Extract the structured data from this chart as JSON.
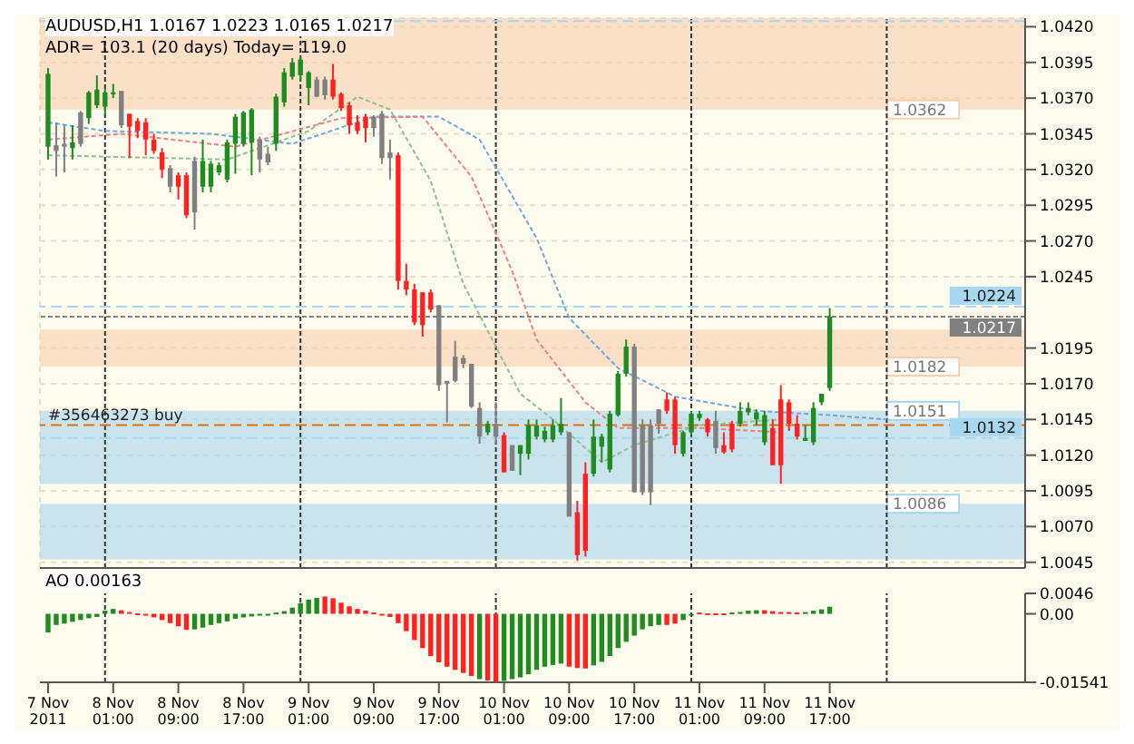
{
  "chart_data": [
    {
      "type": "candlestick",
      "title": "AUDUSD,H1 1.0167 1.0223 1.0165 1.0217",
      "subtitle": "ADR= 103.1 (20 days) Today= 119.0",
      "x": [
        "2011-11-07T17:00",
        "2011-11-07T18:00",
        "2011-11-07T19:00",
        "2011-11-07T20:00",
        "2011-11-07T21:00",
        "2011-11-07T22:00",
        "2011-11-07T23:00",
        "2011-11-08T00:00",
        "2011-11-08T01:00",
        "2011-11-08T02:00",
        "2011-11-08T03:00",
        "2011-11-08T04:00",
        "2011-11-08T05:00",
        "2011-11-08T06:00",
        "2011-11-08T07:00",
        "2011-11-08T08:00",
        "2011-11-08T09:00",
        "2011-11-08T10:00",
        "2011-11-08T11:00",
        "2011-11-08T12:00",
        "2011-11-08T13:00",
        "2011-11-08T14:00",
        "2011-11-08T15:00",
        "2011-11-08T16:00",
        "2011-11-08T17:00",
        "2011-11-08T18:00",
        "2011-11-08T19:00",
        "2011-11-08T20:00",
        "2011-11-08T21:00",
        "2011-11-08T22:00",
        "2011-11-08T23:00",
        "2011-11-09T00:00",
        "2011-11-09T01:00",
        "2011-11-09T02:00",
        "2011-11-09T03:00",
        "2011-11-09T04:00",
        "2011-11-09T05:00",
        "2011-11-09T06:00",
        "2011-11-09T07:00",
        "2011-11-09T08:00",
        "2011-11-09T09:00",
        "2011-11-09T10:00",
        "2011-11-09T11:00",
        "2011-11-09T12:00",
        "2011-11-09T13:00",
        "2011-11-09T14:00",
        "2011-11-09T15:00",
        "2011-11-09T16:00",
        "2011-11-09T17:00",
        "2011-11-09T18:00",
        "2011-11-09T19:00",
        "2011-11-09T20:00",
        "2011-11-09T21:00",
        "2011-11-09T22:00",
        "2011-11-09T23:00",
        "2011-11-10T00:00",
        "2011-11-10T01:00",
        "2011-11-10T02:00",
        "2011-11-10T03:00",
        "2011-11-10T04:00",
        "2011-11-10T05:00",
        "2011-11-10T06:00",
        "2011-11-10T07:00",
        "2011-11-10T08:00",
        "2011-11-10T09:00",
        "2011-11-10T10:00",
        "2011-11-10T11:00",
        "2011-11-10T12:00",
        "2011-11-10T13:00",
        "2011-11-10T14:00",
        "2011-11-10T15:00",
        "2011-11-10T16:00",
        "2011-11-10T17:00",
        "2011-11-10T18:00",
        "2011-11-10T19:00",
        "2011-11-10T20:00",
        "2011-11-10T21:00",
        "2011-11-10T22:00",
        "2011-11-10T23:00",
        "2011-11-11T00:00",
        "2011-11-11T01:00",
        "2011-11-11T02:00",
        "2011-11-11T03:00",
        "2011-11-11T04:00",
        "2011-11-11T05:00",
        "2011-11-11T06:00",
        "2011-11-11T07:00",
        "2011-11-11T08:00",
        "2011-11-11T09:00",
        "2011-11-11T10:00",
        "2011-11-11T11:00",
        "2011-11-11T12:00",
        "2011-11-11T13:00",
        "2011-11-11T14:00",
        "2011-11-11T15:00",
        "2011-11-11T16:00",
        "2011-11-11T17:00"
      ],
      "ohlc": [
        [
          1.0336,
          1.0391,
          1.0327,
          1.0387
        ],
        [
          1.0337,
          1.0353,
          1.0315,
          1.0333
        ],
        [
          1.0336,
          1.0351,
          1.0318,
          1.0338
        ],
        [
          1.0335,
          1.0351,
          1.0327,
          1.0339
        ],
        [
          1.0338,
          1.0361,
          1.0336,
          1.036
        ],
        [
          1.0356,
          1.0375,
          1.0352,
          1.0374
        ],
        [
          1.0365,
          1.0386,
          1.0363,
          1.0376
        ],
        [
          1.0364,
          1.0377,
          1.0358,
          1.0374
        ],
        [
          1.0373,
          1.038,
          1.037,
          1.0374
        ],
        [
          1.0375,
          1.0375,
          1.0349,
          1.0351
        ],
        [
          1.0359,
          1.0359,
          1.0328,
          1.035
        ],
        [
          1.0354,
          1.0356,
          1.0342,
          1.0347
        ],
        [
          1.0353,
          1.0356,
          1.033,
          1.0341
        ],
        [
          1.0341,
          1.0345,
          1.0331,
          1.0333
        ],
        [
          1.0332,
          1.0335,
          1.0314,
          1.032
        ],
        [
          1.0321,
          1.0323,
          1.0304,
          1.0308
        ],
        [
          1.0316,
          1.0318,
          1.0299,
          1.0308
        ],
        [
          1.0316,
          1.0318,
          1.0286,
          1.0288
        ],
        [
          1.029,
          1.0329,
          1.0278,
          1.0326
        ],
        [
          1.0308,
          1.0341,
          1.0304,
          1.0326
        ],
        [
          1.0308,
          1.0326,
          1.0304,
          1.0324
        ],
        [
          1.0318,
          1.0325,
          1.0316,
          1.0323
        ],
        [
          1.0313,
          1.0341,
          1.0311,
          1.0339
        ],
        [
          1.0338,
          1.0359,
          1.0317,
          1.0357
        ],
        [
          1.0338,
          1.0361,
          1.0336,
          1.036
        ],
        [
          1.0339,
          1.0363,
          1.0316,
          1.0362
        ],
        [
          1.0341,
          1.0343,
          1.0318,
          1.0327
        ],
        [
          1.0331,
          1.0336,
          1.0323,
          1.0325
        ],
        [
          1.0338,
          1.0373,
          1.0333,
          1.0371
        ],
        [
          1.0367,
          1.0391,
          1.0364,
          1.0388
        ],
        [
          1.0385,
          1.0398,
          1.0383,
          1.0395
        ],
        [
          1.0386,
          1.0399,
          1.0382,
          1.0397
        ],
        [
          1.0377,
          1.0389,
          1.0365,
          1.0388
        ],
        [
          1.0383,
          1.0385,
          1.0371,
          1.0371
        ],
        [
          1.0383,
          1.0385,
          1.0369,
          1.0372
        ],
        [
          1.0383,
          1.0394,
          1.0369,
          1.0371
        ],
        [
          1.0373,
          1.0374,
          1.0361,
          1.0363
        ],
        [
          1.0365,
          1.0367,
          1.0345,
          1.0351
        ],
        [
          1.0353,
          1.0358,
          1.0345,
          1.0347
        ],
        [
          1.0357,
          1.0359,
          1.0339,
          1.0349
        ],
        [
          1.0357,
          1.0358,
          1.0343,
          1.0349
        ],
        [
          1.0359,
          1.0361,
          1.0324,
          1.0328
        ],
        [
          1.0332,
          1.0341,
          1.0313,
          1.0328
        ],
        [
          1.033,
          1.0332,
          1.0236,
          1.0242
        ],
        [
          1.0242,
          1.0254,
          1.0232,
          1.0236
        ],
        [
          1.0236,
          1.024,
          1.0211,
          1.0213
        ],
        [
          1.0234,
          1.0234,
          1.0203,
          1.0211
        ],
        [
          1.0234,
          1.0236,
          1.022,
          1.0222
        ],
        [
          1.0225,
          1.0225,
          1.0165,
          1.0169
        ],
        [
          1.0172,
          1.0172,
          1.0143,
          1.017
        ],
        [
          1.0172,
          1.02,
          1.0171,
          1.0189
        ],
        [
          1.0188,
          1.019,
          1.0181,
          1.0184
        ],
        [
          1.0184,
          1.0184,
          1.0153,
          1.0154
        ],
        [
          1.0153,
          1.0157,
          1.0128,
          1.0133
        ],
        [
          1.0136,
          1.0144,
          1.0134,
          1.0142
        ],
        [
          1.0142,
          1.0157,
          1.0128,
          1.0133
        ],
        [
          1.0134,
          1.0136,
          1.0108,
          1.0108
        ],
        [
          1.0127,
          1.0127,
          1.0109,
          1.0109
        ],
        [
          1.0121,
          1.0127,
          1.0106,
          1.0127
        ],
        [
          1.0121,
          1.0145,
          1.0117,
          1.0141
        ],
        [
          1.0133,
          1.0145,
          1.0131,
          1.0141
        ],
        [
          1.0131,
          1.014,
          1.0129,
          1.0137
        ],
        [
          1.0131,
          1.0145,
          1.0129,
          1.0141
        ],
        [
          1.0136,
          1.016,
          1.0134,
          1.0142
        ],
        [
          1.0136,
          1.0136,
          1.0077,
          1.0077
        ],
        [
          1.008,
          1.0088,
          1.0046,
          1.005
        ],
        [
          1.0107,
          1.0115,
          1.0049,
          1.0053
        ],
        [
          1.0107,
          1.0145,
          1.0105,
          1.0133
        ],
        [
          1.0126,
          1.0135,
          1.0115,
          1.0133
        ],
        [
          1.011,
          1.0151,
          1.0108,
          1.0149
        ],
        [
          1.0148,
          1.0179,
          1.0147,
          1.0177
        ],
        [
          1.0177,
          1.0201,
          1.0175,
          1.0196
        ],
        [
          1.0196,
          1.0198,
          1.0094,
          1.0094
        ],
        [
          1.0094,
          1.0145,
          1.0092,
          1.0141
        ],
        [
          1.0141,
          1.0145,
          1.0085,
          1.0094
        ],
        [
          1.0142,
          1.0152,
          1.0135,
          1.0152
        ],
        [
          1.0159,
          1.0164,
          1.0149,
          1.0151
        ],
        [
          1.0159,
          1.0161,
          1.0121,
          1.0127
        ],
        [
          1.0121,
          1.0137,
          1.0119,
          1.0136
        ],
        [
          1.0136,
          1.0151,
          1.0134,
          1.0149
        ],
        [
          1.0146,
          1.0151,
          1.0144,
          1.0149
        ],
        [
          1.0145,
          1.0146,
          1.0133,
          1.0136
        ],
        [
          1.0144,
          1.0151,
          1.0121,
          1.0125
        ],
        [
          1.0127,
          1.0136,
          1.0121,
          1.0122
        ],
        [
          1.0142,
          1.0144,
          1.0122,
          1.0124
        ],
        [
          1.0142,
          1.0157,
          1.014,
          1.0151
        ],
        [
          1.015,
          1.0157,
          1.0148,
          1.0153
        ],
        [
          1.0145,
          1.0152,
          1.0141,
          1.015
        ],
        [
          1.0129,
          1.0151,
          1.0127,
          1.0148
        ],
        [
          1.0139,
          1.0145,
          1.0113,
          1.0113
        ],
        [
          1.0159,
          1.0169,
          1.01,
          1.0113
        ],
        [
          1.0157,
          1.0159,
          1.0137,
          1.0142
        ],
        [
          1.0142,
          1.0148,
          1.0131,
          1.0133
        ],
        [
          1.013,
          1.0141,
          1.013,
          1.0132
        ],
        [
          1.0129,
          1.0157,
          1.0127,
          1.0153
        ],
        [
          1.0157,
          1.0163,
          1.0155,
          1.0163
        ],
        [
          1.0167,
          1.0223,
          1.0165,
          1.0217
        ]
      ],
      "colors": [
        "#1e8c1e",
        "#808080",
        "#808080",
        "#1e8c1e",
        "#808080",
        "#1e8c1e",
        "#1e8c1e",
        "#1e8c1e",
        "#1e8c1e",
        "#808080",
        "#ff2020",
        "#ff2020",
        "#ff2020",
        "#ff2020",
        "#ff2020",
        "#808080",
        "#ff2020",
        "#ff2020",
        "#808080",
        "#1e8c1e",
        "#1e8c1e",
        "#1e8c1e",
        "#1e8c1e",
        "#1e8c1e",
        "#1e8c1e",
        "#1e8c1e",
        "#808080",
        "#808080",
        "#1e8c1e",
        "#1e8c1e",
        "#1e8c1e",
        "#1e8c1e",
        "#1e8c1e",
        "#808080",
        "#808080",
        "#ff2020",
        "#ff2020",
        "#ff2020",
        "#ff2020",
        "#ff2020",
        "#808080",
        "#808080",
        "#808080",
        "#ff2020",
        "#ff2020",
        "#ff2020",
        "#ff2020",
        "#ff2020",
        "#808080",
        "#808080",
        "#808080",
        "#808080",
        "#808080",
        "#808080",
        "#1e8c1e",
        "#808080",
        "#ff2020",
        "#808080",
        "#1e8c1e",
        "#1e8c1e",
        "#1e8c1e",
        "#1e8c1e",
        "#1e8c1e",
        "#1e8c1e",
        "#808080",
        "#ff2020",
        "#ff2020",
        "#1e8c1e",
        "#1e8c1e",
        "#1e8c1e",
        "#1e8c1e",
        "#1e8c1e",
        "#808080",
        "#808080",
        "#808080",
        "#808080",
        "#ff2020",
        "#ff2020",
        "#1e8c1e",
        "#1e8c1e",
        "#1e8c1e",
        "#ff2020",
        "#808080",
        "#ff2020",
        "#ff2020",
        "#1e8c1e",
        "#1e8c1e",
        "#1e8c1e",
        "#1e8c1e",
        "#ff2020",
        "#ff2020",
        "#ff2020",
        "#ff2020",
        "#1e8c1e",
        "#1e8c1e",
        "#1e8c1e",
        "#1e8c1e"
      ],
      "series": [
        {
          "type": "line",
          "color": "#6fa8dc",
          "x": [
            "2011-11-07T17:00",
            "2011-11-08T00:00",
            "2011-11-08T13:00",
            "2011-11-08T23:00",
            "2011-11-09T09:00",
            "2011-11-09T17:00",
            "2011-11-09T22:00",
            "2011-11-10T05:00",
            "2011-11-10T09:00",
            "2011-11-10T15:00",
            "2011-11-10T22:00",
            "2011-11-11T08:00",
            "2011-11-11T17:00",
            "2011-11-12T00:00"
          ],
          "values": [
            1.0353,
            1.0347,
            1.0345,
            1.0338,
            1.0357,
            1.0357,
            1.0341,
            1.0272,
            1.0216,
            1.0181,
            1.0161,
            1.0151,
            1.0148,
            1.0145
          ]
        },
        {
          "type": "line",
          "color": "#f08080",
          "x": [
            "2011-11-07T17:00",
            "2011-11-08T02:00",
            "2011-11-08T16:00",
            "2011-11-09T05:00",
            "2011-11-09T15:00",
            "2011-11-09T21:00",
            "2011-11-10T02:00",
            "2011-11-10T05:00",
            "2011-11-10T11:00",
            "2011-11-10T15:00",
            "2011-11-11T01:00",
            "2011-11-11T11:00"
          ],
          "values": [
            1.0341,
            1.0345,
            1.0336,
            1.0356,
            1.0357,
            1.0315,
            1.0249,
            1.0201,
            1.0157,
            1.0139,
            1.0139,
            1.0136
          ]
        },
        {
          "type": "line",
          "color": "#90c090",
          "x": [
            "2011-11-07T17:00",
            "2011-11-08T15:00",
            "2011-11-09T01:00",
            "2011-11-09T07:00",
            "2011-11-09T11:00",
            "2011-11-09T16:00",
            "2011-11-09T20:00",
            "2011-11-10T03:00",
            "2011-11-10T07:00",
            "2011-11-10T13:00",
            "2011-11-10T17:00",
            "2011-11-11T01:00",
            "2011-11-11T11:00"
          ],
          "values": [
            1.033,
            1.0327,
            1.0347,
            1.0371,
            1.0362,
            1.0312,
            1.024,
            1.0163,
            1.0145,
            1.0115,
            1.0127,
            1.0141,
            1.0145
          ]
        }
      ],
      "line_style": "dotted",
      "xlim": [
        "2011-11-07T16:00",
        "2011-11-12T17:00"
      ],
      "xticks": [
        "2011-11-07T17:00",
        "2011-11-08T01:00",
        "2011-11-08T09:00",
        "2011-11-08T17:00",
        "2011-11-09T01:00",
        "2011-11-09T09:00",
        "2011-11-09T17:00",
        "2011-11-10T01:00",
        "2011-11-10T09:00",
        "2011-11-10T17:00",
        "2011-11-11T01:00",
        "2011-11-11T09:00",
        "2011-11-11T17:00"
      ],
      "ylim": [
        1.0041,
        1.0426
      ],
      "yticks": [
        1.0045,
        {
          "value": 1.007,
          "label": "1.0070"
        },
        1.0095,
        {
          "value": 1.012,
          "label": "1.0120"
        },
        1.0145,
        {
          "value": 1.017,
          "label": "1.0170"
        },
        1.0195,
        1.0245,
        {
          "value": 1.027,
          "label": "1.0270"
        },
        1.0295,
        {
          "value": 1.032,
          "label": "1.0320"
        },
        1.0345,
        {
          "value": 1.037,
          "label": "1.0370"
        },
        1.0395,
        {
          "value": 1.042,
          "label": "1.0420"
        }
      ],
      "tick_labels": "y",
      "grid": true,
      "bands": [
        {
          "axis": "y",
          "from": 1.0362,
          "to": 1.0426,
          "label": "1.0362",
          "color": "#f9cfae"
        },
        {
          "axis": "y",
          "from": 1.0182,
          "to": 1.0208,
          "label": "1.0182",
          "color": "#f9cfae"
        },
        {
          "axis": "y",
          "from": 1.0151,
          "to": 1.01,
          "label": "1.0151",
          "color": "#a9d6ee"
        },
        {
          "axis": "y",
          "from": 1.0086,
          "to": 1.0047,
          "label": "1.0086",
          "color": "#a9d6ee"
        }
      ],
      "ref_lines": [
        {
          "axis": "x",
          "value": "2011-11-08T00:00",
          "color": "#333333",
          "line_style": "dotted"
        },
        {
          "axis": "x",
          "value": "2011-11-09T00:00",
          "color": "#333333",
          "line_style": "dotted"
        },
        {
          "axis": "x",
          "value": "2011-11-10T00:00",
          "color": "#333333",
          "line_style": "dotted"
        },
        {
          "axis": "x",
          "value": "2011-11-11T00:00",
          "color": "#333333",
          "line_style": "dotted"
        },
        {
          "axis": "x",
          "value": "2011-11-12T00:00",
          "color": "#333333",
          "line_style": "dotted"
        },
        {
          "axis": "y",
          "value": 1.0424,
          "color": "#a8d8f0",
          "line_style": "dashed"
        },
        {
          "axis": "y",
          "value": 1.0224,
          "label": "1.0224",
          "color": "#a8d8f0",
          "line_style": "dashed"
        },
        {
          "axis": "y",
          "value": 1.0217,
          "label": "1.0217",
          "color": "#808080",
          "line_style": "dotted"
        },
        {
          "axis": "y",
          "value": 1.0141,
          "color": "#e07000",
          "line_style": "dashed"
        },
        {
          "axis": "y",
          "value": 1.0132,
          "label": "1.0132",
          "color": "#a8d8f0",
          "line_style": "dashed"
        }
      ],
      "annotations": [
        {
          "text": "#356463273 buy",
          "x": "2011-11-07T17:00",
          "y": 1.0141
        }
      ]
    },
    {
      "type": "bar",
      "title": "AO 0.00163",
      "x": [
        "2011-11-07T17:00",
        "2011-11-07T18:00",
        "2011-11-07T19:00",
        "2011-11-07T20:00",
        "2011-11-07T21:00",
        "2011-11-07T22:00",
        "2011-11-07T23:00",
        "2011-11-08T00:00",
        "2011-11-08T01:00",
        "2011-11-08T02:00",
        "2011-11-08T03:00",
        "2011-11-08T04:00",
        "2011-11-08T05:00",
        "2011-11-08T06:00",
        "2011-11-08T07:00",
        "2011-11-08T08:00",
        "2011-11-08T09:00",
        "2011-11-08T10:00",
        "2011-11-08T11:00",
        "2011-11-08T12:00",
        "2011-11-08T13:00",
        "2011-11-08T14:00",
        "2011-11-08T15:00",
        "2011-11-08T16:00",
        "2011-11-08T17:00",
        "2011-11-08T18:00",
        "2011-11-08T19:00",
        "2011-11-08T20:00",
        "2011-11-08T21:00",
        "2011-11-08T22:00",
        "2011-11-08T23:00",
        "2011-11-09T00:00",
        "2011-11-09T01:00",
        "2011-11-09T02:00",
        "2011-11-09T03:00",
        "2011-11-09T04:00",
        "2011-11-09T05:00",
        "2011-11-09T06:00",
        "2011-11-09T07:00",
        "2011-11-09T08:00",
        "2011-11-09T09:00",
        "2011-11-09T10:00",
        "2011-11-09T11:00",
        "2011-11-09T12:00",
        "2011-11-09T13:00",
        "2011-11-09T14:00",
        "2011-11-09T15:00",
        "2011-11-09T16:00",
        "2011-11-09T17:00",
        "2011-11-09T18:00",
        "2011-11-09T19:00",
        "2011-11-09T20:00",
        "2011-11-09T21:00",
        "2011-11-09T22:00",
        "2011-11-09T23:00",
        "2011-11-10T00:00",
        "2011-11-10T01:00",
        "2011-11-10T02:00",
        "2011-11-10T03:00",
        "2011-11-10T04:00",
        "2011-11-10T05:00",
        "2011-11-10T06:00",
        "2011-11-10T07:00",
        "2011-11-10T08:00",
        "2011-11-10T09:00",
        "2011-11-10T10:00",
        "2011-11-10T11:00",
        "2011-11-10T12:00",
        "2011-11-10T13:00",
        "2011-11-10T14:00",
        "2011-11-10T15:00",
        "2011-11-10T16:00",
        "2011-11-10T17:00",
        "2011-11-10T18:00",
        "2011-11-10T19:00",
        "2011-11-10T20:00",
        "2011-11-10T21:00",
        "2011-11-10T22:00",
        "2011-11-10T23:00",
        "2011-11-11T00:00",
        "2011-11-11T01:00",
        "2011-11-11T02:00",
        "2011-11-11T03:00",
        "2011-11-11T04:00",
        "2011-11-11T05:00",
        "2011-11-11T06:00",
        "2011-11-11T07:00",
        "2011-11-11T08:00",
        "2011-11-11T09:00",
        "2011-11-11T10:00",
        "2011-11-11T11:00",
        "2011-11-11T12:00",
        "2011-11-11T13:00",
        "2011-11-11T14:00",
        "2011-11-11T15:00",
        "2011-11-11T16:00",
        "2011-11-11T17:00"
      ],
      "values": [
        -0.0042,
        -0.0025,
        -0.0022,
        -0.0018,
        -0.0014,
        -0.001,
        -0.0007,
        0.0007,
        0.0011,
        0.0008,
        0.0004,
        0.0001,
        -0.0004,
        -0.0008,
        -0.0014,
        -0.0021,
        -0.0028,
        -0.0036,
        -0.0035,
        -0.0031,
        -0.0025,
        -0.0021,
        -0.0017,
        -0.0011,
        -0.0008,
        -0.0006,
        -0.0003,
        -0.0001,
        0.0003,
        0.0006,
        0.0014,
        0.0024,
        0.0032,
        0.0036,
        0.0039,
        0.0035,
        0.0025,
        0.0017,
        0.0011,
        0.0007,
        0.0003,
        0,
        -0.0007,
        -0.0021,
        -0.0039,
        -0.0059,
        -0.0077,
        -0.0095,
        -0.0109,
        -0.0119,
        -0.0126,
        -0.0133,
        -0.014,
        -0.0147,
        -0.015,
        -0.0153,
        -0.0151,
        -0.0147,
        -0.0143,
        -0.0136,
        -0.0126,
        -0.0119,
        -0.0115,
        -0.0112,
        -0.0119,
        -0.0122,
        -0.0123,
        -0.0116,
        -0.0108,
        -0.0095,
        -0.0077,
        -0.0063,
        -0.0049,
        -0.0035,
        -0.0028,
        -0.0025,
        -0.0025,
        -0.0022,
        -0.0014,
        -0.0003,
        0.0003,
        0.0001,
        0.0001,
        0.0001,
        0.0003,
        0.0004,
        0.0007,
        0.0008,
        0.0008,
        0.0006,
        0.0004,
        0.0004,
        0.0003,
        0.0004,
        0.0007,
        0.001,
        0.0016
      ],
      "colors": [
        "#1e8c1e",
        "#1e8c1e",
        "#1e8c1e",
        "#1e8c1e",
        "#1e8c1e",
        "#1e8c1e",
        "#1e8c1e",
        "#1e8c1e",
        "#1e8c1e",
        "#ff2020",
        "#ff2020",
        "#ff2020",
        "#ff2020",
        "#ff2020",
        "#ff2020",
        "#ff2020",
        "#ff2020",
        "#ff2020",
        "#1e8c1e",
        "#1e8c1e",
        "#1e8c1e",
        "#1e8c1e",
        "#1e8c1e",
        "#1e8c1e",
        "#1e8c1e",
        "#1e8c1e",
        "#1e8c1e",
        "#1e8c1e",
        "#1e8c1e",
        "#1e8c1e",
        "#1e8c1e",
        "#1e8c1e",
        "#1e8c1e",
        "#1e8c1e",
        "#ff2020",
        "#ff2020",
        "#ff2020",
        "#ff2020",
        "#ff2020",
        "#ff2020",
        "#ff2020",
        "#ff2020",
        "#ff2020",
        "#ff2020",
        "#ff2020",
        "#ff2020",
        "#ff2020",
        "#ff2020",
        "#ff2020",
        "#ff2020",
        "#ff2020",
        "#ff2020",
        "#ff2020",
        "#1e8c1e",
        "#ff2020",
        "#ff2020",
        "#1e8c1e",
        "#1e8c1e",
        "#1e8c1e",
        "#1e8c1e",
        "#1e8c1e",
        "#1e8c1e",
        "#1e8c1e",
        "#1e8c1e",
        "#ff2020",
        "#ff2020",
        "#ff2020",
        "#1e8c1e",
        "#1e8c1e",
        "#1e8c1e",
        "#1e8c1e",
        "#1e8c1e",
        "#1e8c1e",
        "#1e8c1e",
        "#1e8c1e",
        "#1e8c1e",
        "#ff2020",
        "#ff2020",
        "#1e8c1e",
        "#1e8c1e",
        "#ff2020",
        "#ff2020",
        "#ff2020",
        "#ff2020",
        "#1e8c1e",
        "#1e8c1e",
        "#1e8c1e",
        "#1e8c1e",
        "#ff2020",
        "#ff2020",
        "#ff2020",
        "#ff2020",
        "#ff2020",
        "#1e8c1e",
        "#1e8c1e",
        "#1e8c1e",
        "#1e8c1e"
      ],
      "xlim": [
        "2011-11-07T16:00",
        "2011-11-12T17:00"
      ],
      "xticks": [
        {
          "value": "2011-11-07T17:00",
          "label": "7 Nov 2011"
        },
        {
          "value": "2011-11-08T01:00",
          "label": "8 Nov 01:00"
        },
        {
          "value": "2011-11-08T09:00",
          "label": "8 Nov 09:00"
        },
        {
          "value": "2011-11-08T17:00",
          "label": "8 Nov 17:00"
        },
        {
          "value": "2011-11-09T01:00",
          "label": "9 Nov 01:00"
        },
        {
          "value": "2011-11-09T09:00",
          "label": "9 Nov 09:00"
        },
        {
          "value": "2011-11-09T17:00",
          "label": "9 Nov 17:00"
        },
        {
          "value": "2011-11-10T01:00",
          "label": "10 Nov 01:00"
        },
        {
          "value": "2011-11-10T09:00",
          "label": "10 Nov 09:00"
        },
        {
          "value": "2011-11-10T17:00",
          "label": "10 Nov 17:00"
        },
        {
          "value": "2011-11-11T01:00",
          "label": "11 Nov 01:00"
        },
        {
          "value": "2011-11-11T09:00",
          "label": "11 Nov 09:00"
        },
        {
          "value": "2011-11-11T17:00",
          "label": "11 Nov 17:00"
        }
      ],
      "ylim": [
        -0.01541,
        0.0046
      ],
      "yticks": [
        -0.01541,
        {
          "value": 0,
          "label": "0.00"
        },
        0.0046
      ],
      "ref_lines": [
        {
          "axis": "x",
          "value": "2011-11-08T00:00",
          "color": "#333333",
          "line_style": "dotted"
        },
        {
          "axis": "x",
          "value": "2011-11-09T00:00",
          "color": "#333333",
          "line_style": "dotted"
        },
        {
          "axis": "x",
          "value": "2011-11-10T00:00",
          "color": "#333333",
          "line_style": "dotted"
        },
        {
          "axis": "x",
          "value": "2011-11-11T00:00",
          "color": "#333333",
          "line_style": "dotted"
        },
        {
          "axis": "x",
          "value": "2011-11-12T00:00",
          "color": "#333333",
          "line_style": "dotted"
        }
      ]
    }
  ]
}
